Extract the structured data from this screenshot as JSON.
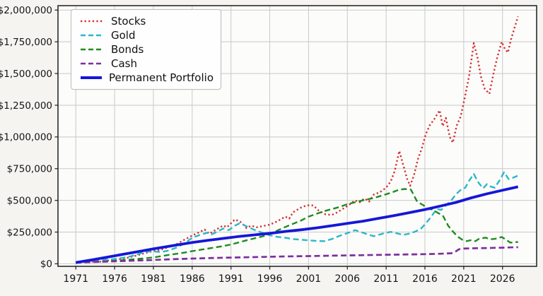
{
  "figure": {
    "background": "#f6f4f1",
    "plot_background": "#fcfcfb",
    "grid_color": "#c9c9c9",
    "frame_color": "#2b2b2b",
    "text_color": "#151515"
  },
  "chart_data": {
    "type": "line",
    "title": "",
    "xlabel": "",
    "ylabel": "",
    "grid": true,
    "legend_position": "upper-left",
    "x_range": [
      1968.7,
      2030.4
    ],
    "y_range": [
      -20000,
      2035000
    ],
    "x_ticks": [
      1971,
      1976,
      1981,
      1986,
      1991,
      1996,
      2001,
      2006,
      2011,
      2016,
      2021,
      2026
    ],
    "x_tick_labels": [
      "1971",
      "1976",
      "1981",
      "1986",
      "1991",
      "1996",
      "2001",
      "2006",
      "2011",
      "2016",
      "2021",
      "2026"
    ],
    "y_ticks": [
      0,
      250000,
      500000,
      750000,
      1000000,
      1250000,
      1500000,
      1750000,
      2000000
    ],
    "y_tick_labels": [
      "$0",
      "$250,000",
      "$500,000",
      "$750,000",
      "$1,000,000",
      "$1,250,000",
      "$1,500,000",
      "$1,750,000",
      "$2,000,000"
    ],
    "series": [
      {
        "name": "Stocks",
        "color": "#d62b2b",
        "style": "dotted",
        "width": 2.4,
        "points": [
          [
            1971,
            10000
          ],
          [
            1972,
            13000
          ],
          [
            1973,
            17000
          ],
          [
            1974,
            15000
          ],
          [
            1975,
            24000
          ],
          [
            1976,
            33000
          ],
          [
            1977,
            40000
          ],
          [
            1978,
            52000
          ],
          [
            1979,
            68000
          ],
          [
            1980,
            86000
          ],
          [
            1981,
            100000
          ],
          [
            1982,
            112000
          ],
          [
            1983,
            132000
          ],
          [
            1984,
            155000
          ],
          [
            1985,
            190000
          ],
          [
            1986,
            222000
          ],
          [
            1987,
            252000
          ],
          [
            1987.6,
            270000
          ],
          [
            1988.2,
            236000
          ],
          [
            1989,
            266000
          ],
          [
            1990,
            302000
          ],
          [
            1990.5,
            288000
          ],
          [
            1991.5,
            350000
          ],
          [
            1992.2,
            332000
          ],
          [
            1993,
            282000
          ],
          [
            1993.6,
            301000
          ],
          [
            1994.3,
            288000
          ],
          [
            1995,
            296000
          ],
          [
            1996,
            308000
          ],
          [
            1997,
            336000
          ],
          [
            1998,
            372000
          ],
          [
            1998.5,
            356000
          ],
          [
            1999,
            406000
          ],
          [
            2000,
            442000
          ],
          [
            2000.8,
            462000
          ],
          [
            2001.6,
            460000
          ],
          [
            2002.3,
            420000
          ],
          [
            2003.2,
            390000
          ],
          [
            2004,
            385000
          ],
          [
            2004.7,
            405000
          ],
          [
            2005.4,
            432000
          ],
          [
            2006,
            455000
          ],
          [
            2007,
            500000
          ],
          [
            2007.6,
            485000
          ],
          [
            2008.2,
            515000
          ],
          [
            2008.8,
            490000
          ],
          [
            2009.4,
            545000
          ],
          [
            2010.2,
            565000
          ],
          [
            2011,
            600000
          ],
          [
            2011.6,
            650000
          ],
          [
            2012.1,
            730000
          ],
          [
            2012.7,
            890000
          ],
          [
            2013.2,
            780000
          ],
          [
            2013.7,
            670000
          ],
          [
            2014.1,
            615000
          ],
          [
            2014.6,
            700000
          ],
          [
            2015.1,
            825000
          ],
          [
            2015.6,
            910000
          ],
          [
            2016.1,
            1020000
          ],
          [
            2016.6,
            1090000
          ],
          [
            2017.2,
            1140000
          ],
          [
            2017.9,
            1210000
          ],
          [
            2018.3,
            1085000
          ],
          [
            2018.7,
            1150000
          ],
          [
            2019.2,
            1000000
          ],
          [
            2019.6,
            955000
          ],
          [
            2020.1,
            1090000
          ],
          [
            2020.6,
            1160000
          ],
          [
            2021.1,
            1300000
          ],
          [
            2021.7,
            1480000
          ],
          [
            2022.3,
            1740000
          ],
          [
            2022.8,
            1620000
          ],
          [
            2023.2,
            1480000
          ],
          [
            2023.7,
            1380000
          ],
          [
            2024.3,
            1340000
          ],
          [
            2024.8,
            1490000
          ],
          [
            2025.3,
            1620000
          ],
          [
            2025.9,
            1750000
          ],
          [
            2026.3,
            1695000
          ],
          [
            2026.7,
            1665000
          ],
          [
            2027.1,
            1770000
          ],
          [
            2027.5,
            1850000
          ],
          [
            2028,
            1950000
          ]
        ]
      },
      {
        "name": "Gold",
        "color": "#2ab7c9",
        "style": "dashed",
        "width": 2.4,
        "points": [
          [
            1971,
            10000
          ],
          [
            1972,
            14000
          ],
          [
            1973,
            20000
          ],
          [
            1974,
            28000
          ],
          [
            1975,
            33000
          ],
          [
            1976,
            38000
          ],
          [
            1977,
            46000
          ],
          [
            1978,
            58000
          ],
          [
            1979,
            75000
          ],
          [
            1980,
            95000
          ],
          [
            1981,
            98000
          ],
          [
            1982,
            92000
          ],
          [
            1983,
            105000
          ],
          [
            1984,
            128000
          ],
          [
            1985,
            160000
          ],
          [
            1986,
            205000
          ],
          [
            1987,
            228000
          ],
          [
            1988,
            245000
          ],
          [
            1988.5,
            232000
          ],
          [
            1989.3,
            255000
          ],
          [
            1990,
            278000
          ],
          [
            1990.7,
            265000
          ],
          [
            1991.5,
            300000
          ],
          [
            1992.2,
            322000
          ],
          [
            1993,
            295000
          ],
          [
            1994,
            268000
          ],
          [
            1995,
            245000
          ],
          [
            1996,
            225000
          ],
          [
            1997,
            212000
          ],
          [
            1998,
            205000
          ],
          [
            1999,
            195000
          ],
          [
            2000,
            190000
          ],
          [
            2001,
            185000
          ],
          [
            2002,
            180000
          ],
          [
            2003,
            178000
          ],
          [
            2004,
            195000
          ],
          [
            2005,
            220000
          ],
          [
            2006,
            242000
          ],
          [
            2007,
            265000
          ],
          [
            2007.8,
            250000
          ],
          [
            2008.6,
            232000
          ],
          [
            2009.4,
            218000
          ],
          [
            2010,
            228000
          ],
          [
            2010.8,
            242000
          ],
          [
            2011.6,
            252000
          ],
          [
            2012.4,
            240000
          ],
          [
            2013.2,
            228000
          ],
          [
            2014,
            238000
          ],
          [
            2014.8,
            255000
          ],
          [
            2015.5,
            278000
          ],
          [
            2016,
            310000
          ],
          [
            2016.8,
            370000
          ],
          [
            2017.5,
            432000
          ],
          [
            2018.1,
            425000
          ],
          [
            2018.7,
            460000
          ],
          [
            2019.4,
            500000
          ],
          [
            2020,
            548000
          ],
          [
            2020.7,
            588000
          ],
          [
            2021.2,
            600000
          ],
          [
            2021.7,
            655000
          ],
          [
            2022.3,
            708000
          ],
          [
            2022.9,
            640000
          ],
          [
            2023.5,
            595000
          ],
          [
            2024,
            628000
          ],
          [
            2024.5,
            608000
          ],
          [
            2025,
            600000
          ],
          [
            2025.6,
            655000
          ],
          [
            2026.2,
            722000
          ],
          [
            2026.8,
            667000
          ],
          [
            2027.4,
            680000
          ],
          [
            2028,
            695000
          ]
        ]
      },
      {
        "name": "Bonds",
        "color": "#1e8c1e",
        "style": "dashed",
        "width": 2.4,
        "points": [
          [
            1971,
            10000
          ],
          [
            1973,
            14000
          ],
          [
            1975,
            20000
          ],
          [
            1976,
            24000
          ],
          [
            1978,
            33000
          ],
          [
            1980,
            44000
          ],
          [
            1981,
            50000
          ],
          [
            1983,
            70000
          ],
          [
            1985,
            88000
          ],
          [
            1986,
            100000
          ],
          [
            1988,
            120000
          ],
          [
            1990,
            140000
          ],
          [
            1991,
            152000
          ],
          [
            1993,
            185000
          ],
          [
            1995,
            215000
          ],
          [
            1996,
            235000
          ],
          [
            1998,
            290000
          ],
          [
            2000,
            340000
          ],
          [
            2001,
            372000
          ],
          [
            2003,
            415000
          ],
          [
            2005,
            448000
          ],
          [
            2006,
            470000
          ],
          [
            2008,
            500000
          ],
          [
            2009.5,
            520000
          ],
          [
            2011,
            548000
          ],
          [
            2012,
            568000
          ],
          [
            2012.6,
            583000
          ],
          [
            2013.4,
            590000
          ],
          [
            2014.2,
            585000
          ],
          [
            2015,
            490000
          ],
          [
            2015.8,
            462000
          ],
          [
            2016.4,
            433000
          ],
          [
            2017,
            428000
          ],
          [
            2017.7,
            400000
          ],
          [
            2018.3,
            382000
          ],
          [
            2019,
            300000
          ],
          [
            2019.6,
            255000
          ],
          [
            2020.2,
            215000
          ],
          [
            2020.8,
            190000
          ],
          [
            2021.4,
            178000
          ],
          [
            2022,
            188000
          ],
          [
            2022.5,
            178000
          ],
          [
            2023,
            198000
          ],
          [
            2023.8,
            206000
          ],
          [
            2024.4,
            194000
          ],
          [
            2025,
            196000
          ],
          [
            2025.9,
            211000
          ],
          [
            2026.4,
            192000
          ],
          [
            2027,
            167000
          ],
          [
            2027.5,
            170000
          ],
          [
            2028,
            172000
          ]
        ]
      },
      {
        "name": "Cash",
        "color": "#7d2f9e",
        "style": "dashed",
        "width": 2.7,
        "points": [
          [
            1971,
            10000
          ],
          [
            1974,
            15000
          ],
          [
            1977,
            22000
          ],
          [
            1980,
            28000
          ],
          [
            1983,
            35000
          ],
          [
            1986,
            41000
          ],
          [
            1989,
            46000
          ],
          [
            1992,
            50000
          ],
          [
            1995,
            54000
          ],
          [
            1998,
            58000
          ],
          [
            2001,
            61000
          ],
          [
            2004,
            64000
          ],
          [
            2007,
            67000
          ],
          [
            2010,
            70000
          ],
          [
            2013,
            73000
          ],
          [
            2016,
            76000
          ],
          [
            2018,
            79000
          ],
          [
            2019.4,
            83000
          ],
          [
            2019.9,
            95000
          ],
          [
            2020.4,
            115000
          ],
          [
            2021,
            120000
          ],
          [
            2022,
            122000
          ],
          [
            2023,
            123000
          ],
          [
            2024,
            124000
          ],
          [
            2025,
            126000
          ],
          [
            2026,
            127000
          ],
          [
            2027,
            129000
          ],
          [
            2028,
            131000
          ]
        ]
      },
      {
        "name": "Permanent Portfolio",
        "color": "#1616d8",
        "style": "solid",
        "width": 3.8,
        "points": [
          [
            1971,
            10000
          ],
          [
            1973,
            30000
          ],
          [
            1975,
            52000
          ],
          [
            1977,
            74000
          ],
          [
            1979,
            96000
          ],
          [
            1981,
            118000
          ],
          [
            1983,
            138000
          ],
          [
            1985,
            158000
          ],
          [
            1986,
            168000
          ],
          [
            1988,
            185000
          ],
          [
            1990,
            200000
          ],
          [
            1992,
            215000
          ],
          [
            1994,
            228000
          ],
          [
            1996,
            240000
          ],
          [
            1998,
            255000
          ],
          [
            2000,
            268000
          ],
          [
            2002,
            283000
          ],
          [
            2004,
            300000
          ],
          [
            2006,
            318000
          ],
          [
            2008,
            336000
          ],
          [
            2010,
            358000
          ],
          [
            2012,
            380000
          ],
          [
            2014,
            403000
          ],
          [
            2016,
            428000
          ],
          [
            2018,
            455000
          ],
          [
            2020,
            484000
          ],
          [
            2022,
            520000
          ],
          [
            2024,
            552000
          ],
          [
            2026,
            580000
          ],
          [
            2028,
            607000
          ]
        ]
      }
    ]
  }
}
